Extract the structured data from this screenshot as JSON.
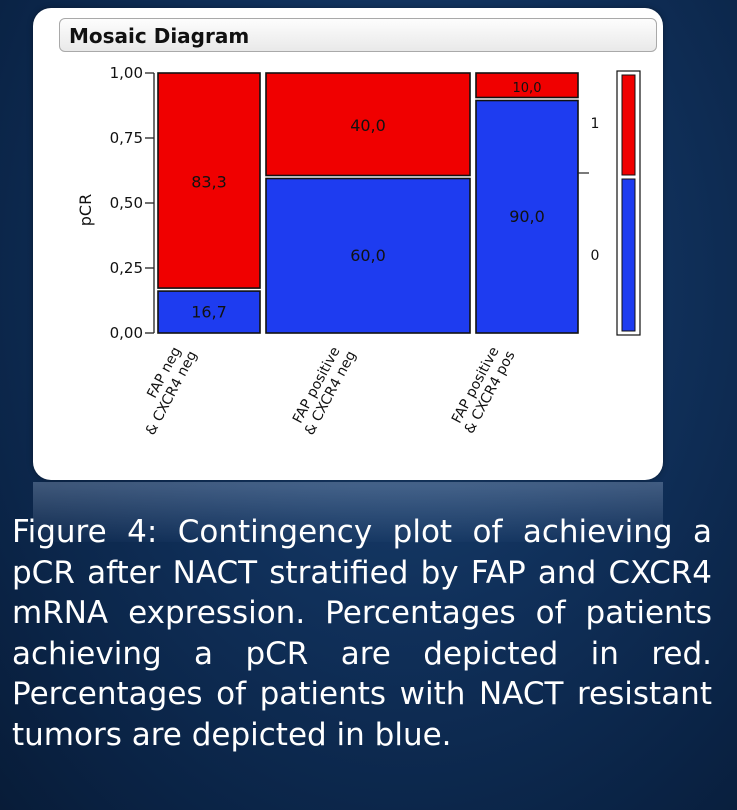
{
  "panel": {
    "title": "Mosaic Diagram"
  },
  "chart_data": {
    "type": "mosaic",
    "title": "Mosaic Diagram",
    "ylabel": "pCR",
    "xlabel": "",
    "ylim": [
      0,
      1
    ],
    "y_ticks": [
      "1,00",
      "0,75",
      "0,50",
      "0,25",
      "0,00"
    ],
    "categories": [
      "FAP neg & CXCR4 neg",
      "FAP positive & CXCR4 neg",
      "FAP positive & CXCR4 pos"
    ],
    "category_labels": [
      [
        "FAP neg",
        "& CXCR4 neg"
      ],
      [
        "FAP positive",
        "& CXCR4 neg"
      ],
      [
        "FAP positive",
        "& CXCR4 pos"
      ]
    ],
    "category_widths": [
      0.25,
      0.5,
      0.25
    ],
    "series": [
      {
        "name": "0",
        "color": "#1e3cf0",
        "values": [
          16.7,
          60.0,
          90.0
        ],
        "labels": [
          "16,7",
          "60,0",
          "90,0"
        ]
      },
      {
        "name": "1",
        "color": "#f00000",
        "values": [
          83.3,
          40.0,
          10.0
        ],
        "labels": [
          "83,3",
          "40,0",
          "10,0"
        ]
      }
    ],
    "legend": {
      "position": "right",
      "marginal": [
        0.6,
        0.4
      ]
    },
    "grid": false
  },
  "caption": "Figure 4: Contingency plot of achieving a pCR after NACT stratified by FAP  and CXCR4 mRNA expression. Percentages of patients achieving a pCR are depicted in red. Percentages of patients with NACT resistant tumors are depicted in blue."
}
